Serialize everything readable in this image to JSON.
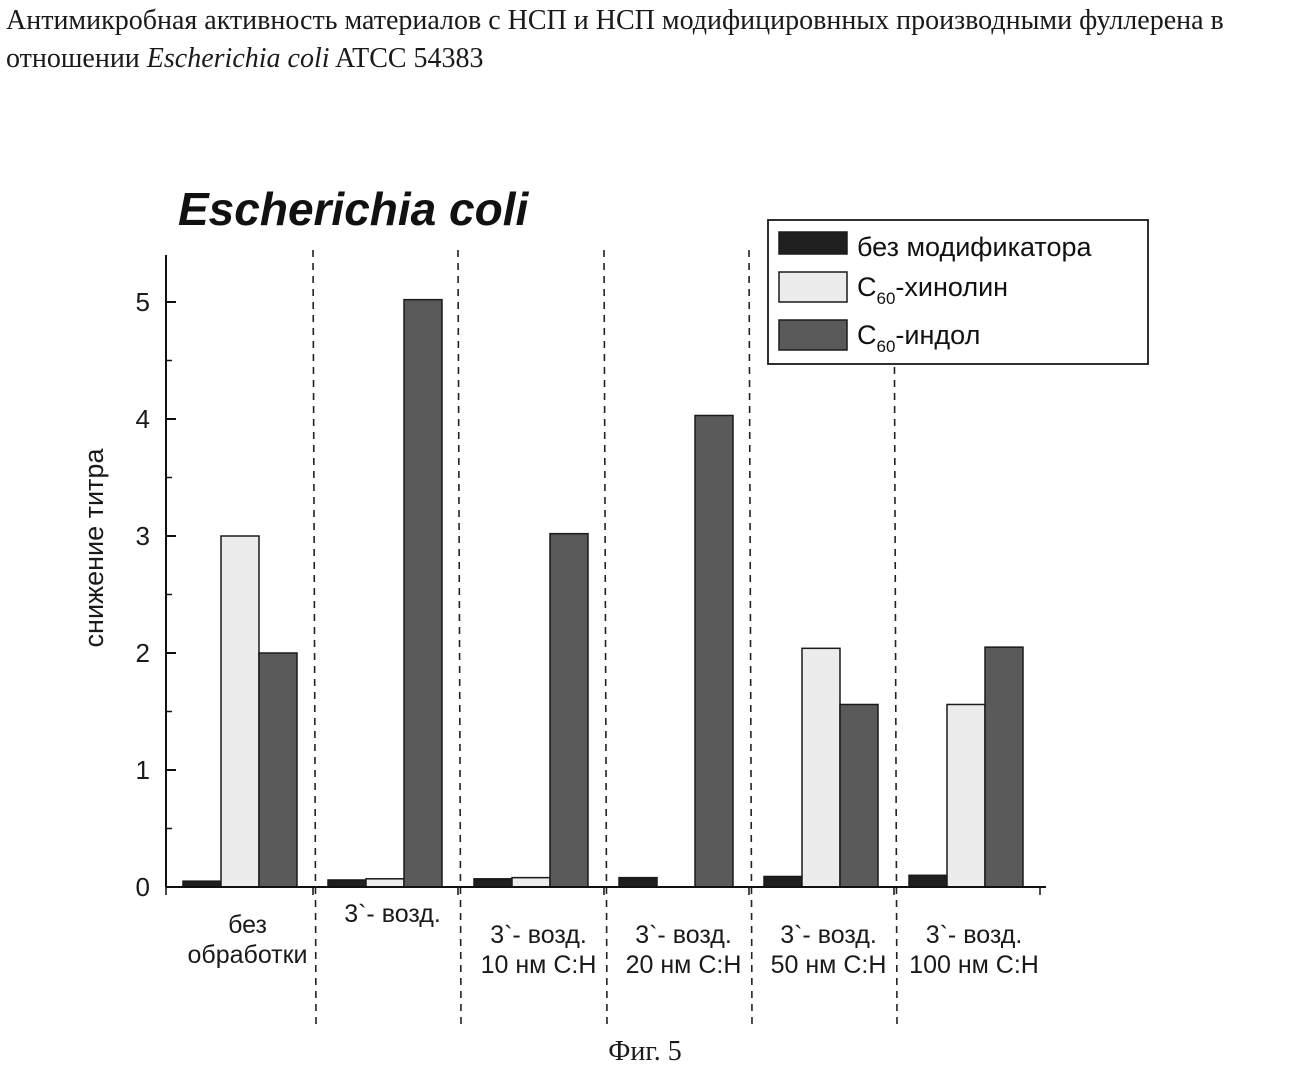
{
  "caption": {
    "part1": "Антимикробная активность материалов с НСП и НСП модифицировнных производными фуллерена в отношении ",
    "species": "Escherichia coli",
    "part2": " ATCC 54383"
  },
  "figure_label": "Фиг. 5",
  "chart_data": {
    "type": "bar",
    "title": "Escherichia coli",
    "ylabel": "снижение титра",
    "xlabel": "",
    "ylim": [
      0,
      5.5
    ],
    "yticks": [
      0,
      1,
      2,
      3,
      4,
      5
    ],
    "legend_position": "top-right",
    "categories": [
      [
        "без",
        "обработки"
      ],
      [
        "3`- возд."
      ],
      [
        "3`- возд.",
        "10 нм С:Н"
      ],
      [
        "3`- возд.",
        "20 нм С:Н"
      ],
      [
        "3`- возд.",
        "50 нм С:Н"
      ],
      [
        "3`- возд.",
        "100 нм С:Н"
      ]
    ],
    "series": [
      {
        "name": "без модификатора",
        "base": "",
        "sub": "",
        "suffix": "",
        "color": "#1f1f1f",
        "values": [
          0.05,
          0.06,
          0.07,
          0.08,
          0.09,
          0.1
        ]
      },
      {
        "name": "C60-хинолин",
        "base": "C",
        "sub": "60",
        "suffix": "-хинолин",
        "color": "#ececec",
        "values": [
          3.0,
          0.07,
          0.08,
          0.0,
          2.04,
          1.56
        ]
      },
      {
        "name": "C60-индол",
        "base": "C",
        "sub": "60",
        "suffix": "-индол",
        "color": "#5a5a5a",
        "values": [
          2.0,
          5.02,
          3.02,
          4.03,
          1.56,
          2.05
        ]
      }
    ],
    "group_separators": true,
    "grid": false
  }
}
